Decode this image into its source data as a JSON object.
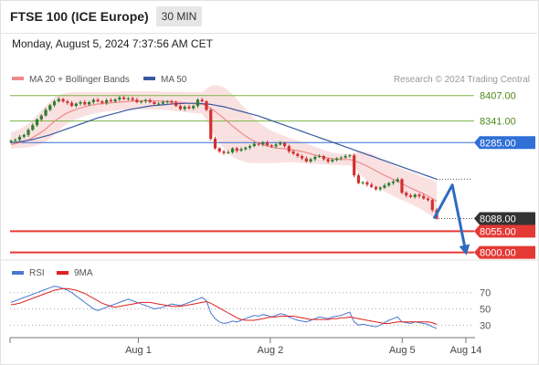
{
  "header": {
    "title": "FTSE 100 (ICE Europe)",
    "timeframe": "30 MIN"
  },
  "datetime": "Monday, August 5, 2024 7:37:56 AM CET",
  "colors": {
    "up": "#2e7d32",
    "down": "#d32f2f",
    "ma20": "#f08a8a",
    "ma50": "#3a5aa0",
    "resistance": "#7cb342",
    "pivot": "#2f6fd6",
    "support": "#e53935",
    "rsi": "#4a78d0",
    "rsi_ma": "#e02020",
    "arrow": "#2d6cc0"
  },
  "chart_data": [
    {
      "type": "candlestick",
      "legend": [
        {
          "name": "MA 20 + Bollinger Bands",
          "color": "#f08a8a"
        },
        {
          "name": "MA 50",
          "color": "#3a5aa0"
        }
      ],
      "legend_position": "top-left",
      "watermark": "Research © 2024 Trading Central",
      "ylim": [
        7985,
        8430
      ],
      "xlim": [
        0,
        100
      ],
      "x_ticks": [
        {
          "x": 28,
          "label": "Aug 1"
        },
        {
          "x": 57,
          "label": "Aug 2"
        },
        {
          "x": 86,
          "label": "Aug 5"
        },
        {
          "x": 100,
          "label": "Aug 14"
        }
      ],
      "levels": [
        {
          "value": 8407.0,
          "label": "8407.00",
          "kind": "resistance"
        },
        {
          "value": 8341.0,
          "label": "8341.00",
          "kind": "resistance"
        },
        {
          "value": 8285.0,
          "label": "8285.00",
          "kind": "pivot"
        },
        {
          "value": 8055.0,
          "label": "8055.00",
          "kind": "support"
        },
        {
          "value": 8000.0,
          "label": "8000.00",
          "kind": "support"
        }
      ],
      "last_price": {
        "value": 8088.0,
        "label": "8088.00"
      },
      "projection": [
        [
          93,
          8088
        ],
        [
          97,
          8175
        ],
        [
          100,
          8000
        ]
      ],
      "series": [
        {
          "kind": "close",
          "values": [
            8290,
            8292,
            8300,
            8305,
            8318,
            8330,
            8345,
            8355,
            8370,
            8382,
            8392,
            8398,
            8392,
            8388,
            8380,
            8386,
            8390,
            8384,
            8390,
            8396,
            8392,
            8388,
            8395,
            8392,
            8397,
            8402,
            8398,
            8400,
            8396,
            8390,
            8392,
            8395,
            8390,
            8385,
            8386,
            8390,
            8392,
            8389,
            8380,
            8372,
            8378,
            8374,
            8380,
            8396,
            8392,
            8370,
            8295,
            8270,
            8262,
            8258,
            8260,
            8270,
            8264,
            8268,
            8272,
            8276,
            8282,
            8280,
            8285,
            8278,
            8275,
            8280,
            8284,
            8276,
            8262,
            8256,
            8250,
            8244,
            8236,
            8242,
            8248,
            8250,
            8242,
            8236,
            8240,
            8244,
            8246,
            8250,
            8252,
            8200,
            8180,
            8182,
            8176,
            8170,
            8164,
            8168,
            8174,
            8180,
            8184,
            8190,
            8155,
            8148,
            8144,
            8150,
            8146,
            8140,
            8136,
            8110,
            8088
          ]
        },
        {
          "kind": "ma20",
          "values": [
            8280,
            8282,
            8285,
            8288,
            8292,
            8298,
            8305,
            8312,
            8320,
            8330,
            8340,
            8348,
            8356,
            8362,
            8367,
            8371,
            8375,
            8378,
            8381,
            8383,
            8385,
            8386,
            8387,
            8388,
            8389,
            8390,
            8391,
            8392,
            8393,
            8393,
            8393,
            8394,
            8394,
            8393,
            8393,
            8392,
            8392,
            8391,
            8390,
            8389,
            8388,
            8387,
            8386,
            8385,
            8385,
            8380,
            8374,
            8366,
            8357,
            8348,
            8338,
            8328,
            8319,
            8310,
            8302,
            8295,
            8289,
            8284,
            8280,
            8276,
            8273,
            8271,
            8270,
            8269,
            8268,
            8266,
            8264,
            8262,
            8259,
            8256,
            8253,
            8250,
            8247,
            8245,
            8243,
            8242,
            8241,
            8241,
            8241,
            8238,
            8234,
            8229,
            8224,
            8218,
            8212,
            8206,
            8200,
            8195,
            8190,
            8185,
            8179,
            8173,
            8167,
            8162,
            8157,
            8152,
            8146,
            8140,
            8133
          ]
        },
        {
          "kind": "bb_upper",
          "values": [
            8312,
            8315,
            8320,
            8326,
            8334,
            8344,
            8356,
            8368,
            8380,
            8392,
            8402,
            8408,
            8412,
            8414,
            8415,
            8416,
            8416,
            8416,
            8416,
            8416,
            8416,
            8416,
            8416,
            8416,
            8417,
            8417,
            8418,
            8418,
            8418,
            8418,
            8418,
            8418,
            8418,
            8418,
            8418,
            8417,
            8417,
            8417,
            8417,
            8417,
            8417,
            8416,
            8416,
            8416,
            8416,
            8425,
            8432,
            8434,
            8432,
            8428,
            8420,
            8410,
            8398,
            8385,
            8372,
            8360,
            8348,
            8338,
            8330,
            8322,
            8316,
            8311,
            8306,
            8302,
            8298,
            8294,
            8290,
            8286,
            8282,
            8278,
            8274,
            8270,
            8266,
            8262,
            8259,
            8257,
            8256,
            8255,
            8255,
            8258,
            8260,
            8261,
            8260,
            8256,
            8250,
            8244,
            8238,
            8232,
            8226,
            8221,
            8217,
            8213,
            8209,
            8205,
            8200,
            8196,
            8192,
            8188,
            8184
          ]
        },
        {
          "kind": "bb_lower",
          "values": [
            8270,
            8270,
            8271,
            8272,
            8273,
            8275,
            8278,
            8282,
            8288,
            8296,
            8306,
            8316,
            8326,
            8334,
            8341,
            8346,
            8350,
            8354,
            8357,
            8360,
            8362,
            8364,
            8366,
            8367,
            8368,
            8369,
            8370,
            8371,
            8371,
            8371,
            8371,
            8371,
            8371,
            8370,
            8370,
            8370,
            8369,
            8368,
            8367,
            8366,
            8364,
            8363,
            8362,
            8361,
            8360,
            8345,
            8318,
            8300,
            8284,
            8270,
            8258,
            8248,
            8242,
            8238,
            8234,
            8232,
            8232,
            8232,
            8232,
            8232,
            8232,
            8232,
            8233,
            8234,
            8234,
            8234,
            8233,
            8232,
            8231,
            8230,
            8230,
            8229,
            8228,
            8228,
            8227,
            8227,
            8226,
            8226,
            8226,
            8220,
            8208,
            8196,
            8186,
            8178,
            8170,
            8164,
            8158,
            8152,
            8146,
            8141,
            8136,
            8131,
            8126,
            8120,
            8114,
            8108,
            8101,
            8094,
            8086
          ]
        },
        {
          "kind": "ma50",
          "values": [
            8285,
            8286,
            8287,
            8289,
            8291,
            8293,
            8296,
            8299,
            8302,
            8305,
            8309,
            8313,
            8317,
            8321,
            8325,
            8329,
            8333,
            8337,
            8341,
            8345,
            8349,
            8352,
            8355,
            8358,
            8361,
            8364,
            8367,
            8370,
            8372,
            8374,
            8376,
            8378,
            8380,
            8381,
            8382,
            8383,
            8384,
            8385,
            8386,
            8386,
            8387,
            8387,
            8387,
            8387,
            8386,
            8385,
            8384,
            8382,
            8380,
            8378,
            8375,
            8372,
            8369,
            8366,
            8363,
            8360,
            8357,
            8354,
            8350,
            8346,
            8342,
            8338,
            8334,
            8330,
            8326,
            8322,
            8318,
            8314,
            8310,
            8306,
            8302,
            8298,
            8294,
            8290,
            8286,
            8282,
            8278,
            8274,
            8270,
            8266,
            8262,
            8258,
            8254,
            8250,
            8246,
            8242,
            8238,
            8234,
            8230,
            8226,
            8222,
            8218,
            8214,
            8210,
            8206,
            8202,
            8198,
            8194,
            8190
          ]
        }
      ]
    },
    {
      "type": "line",
      "legend": [
        {
          "name": "RSI",
          "color": "#4a78d0"
        },
        {
          "name": "9MA",
          "color": "#e02020"
        }
      ],
      "ylim": [
        18,
        82
      ],
      "levels": [
        {
          "value": 70,
          "label": "70"
        },
        {
          "value": 50,
          "label": "50"
        },
        {
          "value": 30,
          "label": "30"
        }
      ],
      "series": [
        {
          "name": "RSI",
          "values": [
            58,
            60,
            62,
            64,
            66,
            68,
            70,
            72,
            74,
            76,
            78,
            77,
            75,
            73,
            70,
            66,
            62,
            58,
            54,
            50,
            48,
            50,
            52,
            54,
            56,
            58,
            60,
            62,
            60,
            58,
            56,
            54,
            52,
            50,
            51,
            52,
            54,
            56,
            55,
            54,
            56,
            58,
            60,
            62,
            64,
            60,
            45,
            38,
            34,
            32,
            33,
            35,
            34,
            36,
            38,
            40,
            42,
            41,
            43,
            42,
            40,
            42,
            44,
            43,
            40,
            38,
            36,
            35,
            34,
            36,
            38,
            40,
            39,
            38,
            40,
            41,
            42,
            44,
            46,
            34,
            30,
            31,
            30,
            29,
            28,
            30,
            33,
            36,
            38,
            40,
            34,
            33,
            32,
            34,
            33,
            32,
            31,
            28,
            26
          ]
        },
        {
          "name": "9MA",
          "values": [
            55,
            56,
            57,
            59,
            61,
            63,
            65,
            67,
            69,
            71,
            73,
            74,
            75,
            75,
            74,
            73,
            71,
            69,
            66,
            63,
            60,
            57,
            55,
            53,
            52,
            53,
            54,
            55,
            56,
            57,
            58,
            58,
            58,
            57,
            56,
            55,
            54,
            53,
            53,
            53,
            54,
            55,
            56,
            57,
            58,
            59,
            57,
            54,
            51,
            48,
            45,
            42,
            39,
            37,
            36,
            36,
            36,
            37,
            38,
            39,
            40,
            40,
            41,
            41,
            41,
            41,
            40,
            39,
            38,
            37,
            37,
            37,
            37,
            37,
            38,
            38,
            39,
            39,
            40,
            39,
            38,
            37,
            36,
            35,
            34,
            33,
            32,
            32,
            33,
            34,
            34,
            34,
            34,
            34,
            34,
            34,
            34,
            33,
            31
          ]
        }
      ]
    }
  ]
}
